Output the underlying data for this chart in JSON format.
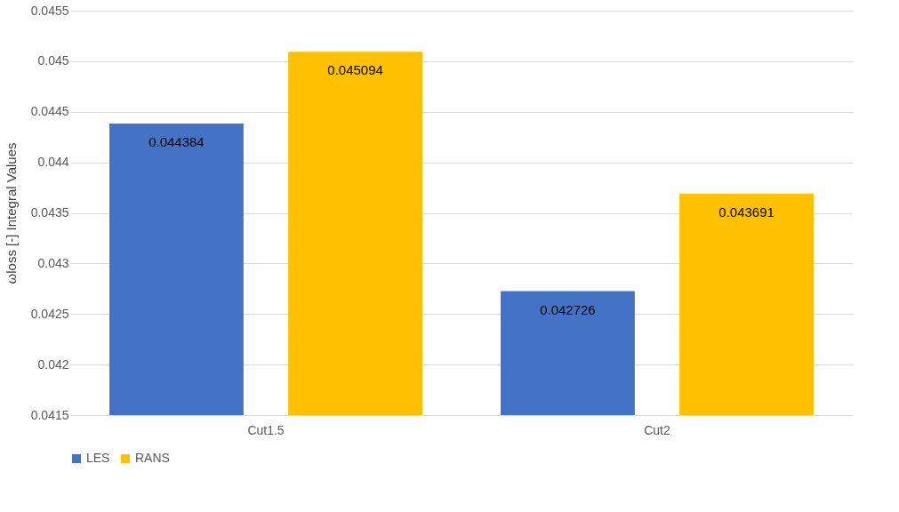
{
  "chart_data": {
    "type": "bar",
    "ylabel": "ωloss [-] Integral Values",
    "categories": [
      "Cut1.5",
      "Cut2"
    ],
    "series": [
      {
        "name": "LES",
        "color": "#4472c4",
        "values": [
          0.044384,
          0.042726
        ]
      },
      {
        "name": "RANS",
        "color": "#ffc000",
        "values": [
          0.045094,
          0.043691
        ]
      }
    ],
    "ylim": [
      0.0415,
      0.0455
    ],
    "yticks": [
      0.0415,
      0.042,
      0.0425,
      0.043,
      0.0435,
      0.044,
      0.0445,
      0.045,
      0.0455
    ],
    "grid": "y",
    "legend": "bottom",
    "data_labels": true
  }
}
